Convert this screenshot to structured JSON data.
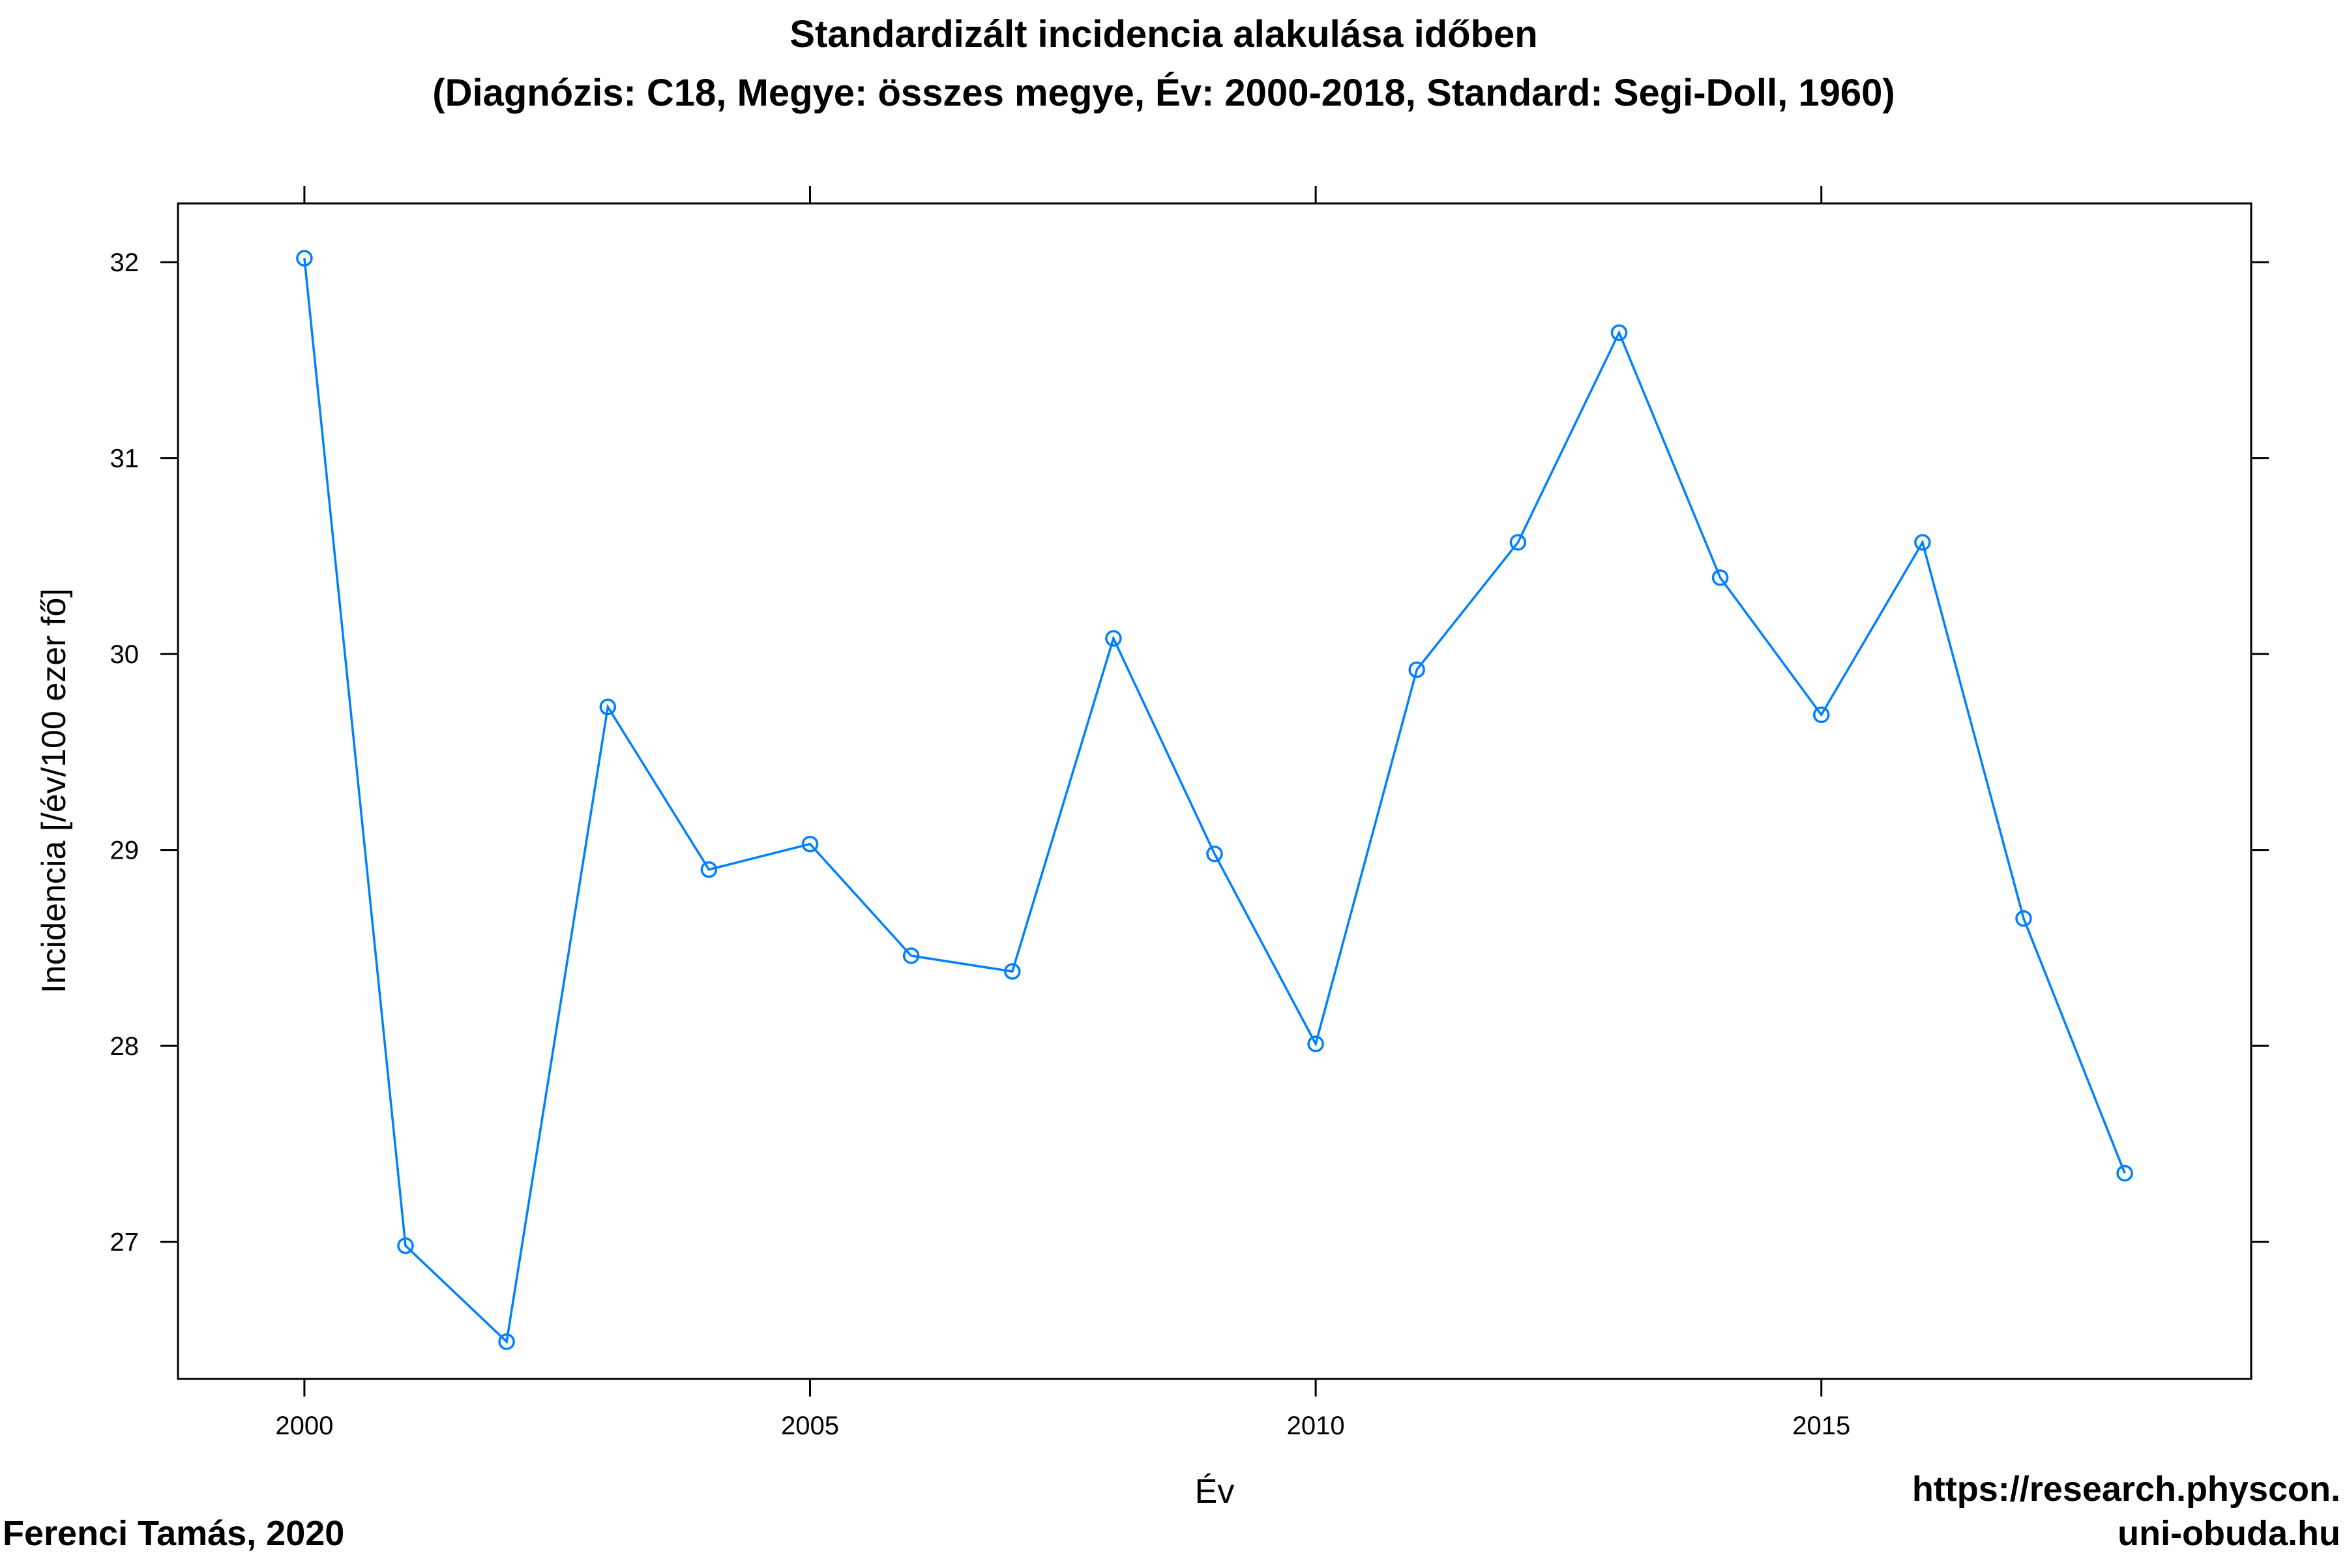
{
  "chart_data": {
    "type": "line",
    "title": "Standardizált incidencia alakulása időben",
    "subtitle": "(Diagnózis: C18, Megye: összes megye, Év: 2000-2018, Standard: Segi-Doll, 1960)",
    "xlabel": "Év",
    "ylabel": "Incidencia [/év/100 ezer fő]",
    "xlim": [
      1998.75,
      2019.25
    ],
    "ylim": [
      26.3,
      32.3
    ],
    "xticks": [
      2000,
      2005,
      2010,
      2015
    ],
    "yticks": [
      27,
      28,
      29,
      30,
      31,
      32
    ],
    "x": [
      2000,
      2001,
      2002,
      2003,
      2004,
      2005,
      2006,
      2007,
      2008,
      2009,
      2010,
      2011,
      2012,
      2013,
      2014,
      2015,
      2016,
      2017,
      2018
    ],
    "series": [
      {
        "values": [
          32.02,
          26.98,
          26.49,
          29.73,
          28.9,
          29.03,
          28.46,
          28.38,
          30.08,
          28.98,
          28.01,
          29.92,
          30.57,
          31.64,
          30.39,
          29.69,
          30.57,
          28.65,
          27.35
        ]
      }
    ],
    "line_color": "#0080ff",
    "grid": false,
    "legend": "none"
  },
  "credits": {
    "author": "Ferenci Tamás, 2020",
    "url_line1": "https://research.physcon.",
    "url_line2": "uni-obuda.hu"
  }
}
